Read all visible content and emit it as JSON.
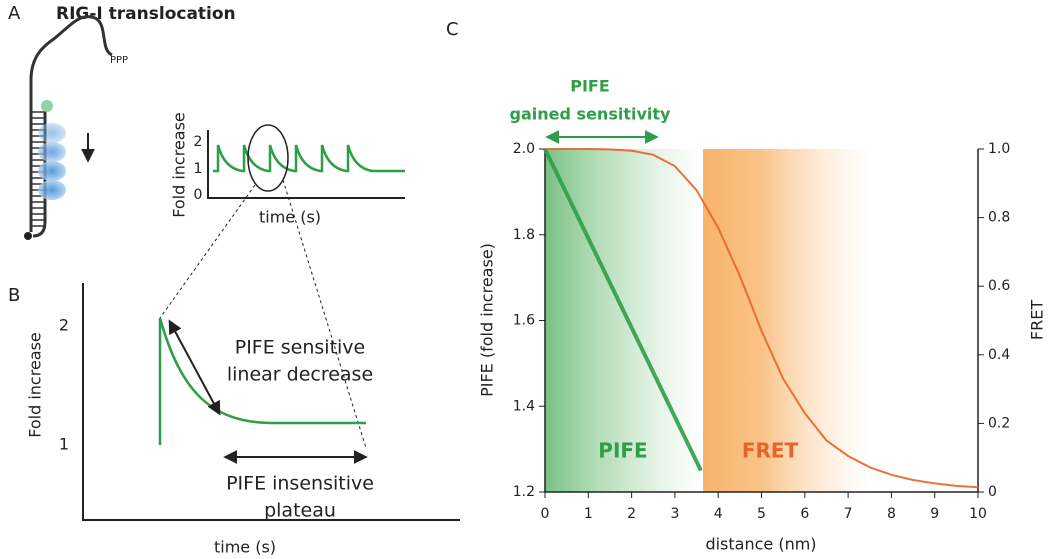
{
  "panel_a": {
    "label": "A",
    "title": "RIG-I translocation",
    "rna_label": "PPP",
    "inset": {
      "y_label": "Fold increase",
      "x_label": "time (s)",
      "yticks": [
        0,
        1,
        2
      ]
    }
  },
  "panel_b": {
    "label": "B",
    "y_label": "Fold increase",
    "x_label": "time (s)",
    "yticks": [
      1,
      2
    ],
    "annotations": [
      "PIFE sensitive",
      "linear decrease",
      "PIFE insensitive",
      "plateau"
    ]
  },
  "chart_data": {
    "type": "line",
    "panel_label": "C",
    "xlabel": "distance (nm)",
    "ylabel": "PIFE (fold increase)",
    "y2label": "FRET",
    "annotations": [
      "PIFE",
      "gained sensitivity"
    ],
    "xlim": [
      0,
      10
    ],
    "xticks": [
      0,
      1,
      2,
      3,
      4,
      5,
      6,
      7,
      8,
      9,
      10
    ],
    "ylim": [
      1.2,
      2.0
    ],
    "yticks": [
      1.2,
      1.4,
      1.6,
      1.8,
      {
        "value": 2.0,
        "label": "2.0"
      }
    ],
    "y2lim": [
      0,
      1
    ],
    "y2ticks": [
      0,
      0.2,
      0.4,
      0.6,
      0.8,
      {
        "value": 1.0,
        "label": "1.0"
      }
    ],
    "series": [
      {
        "name": "PIFE",
        "color": "#2e9e48",
        "x": [
          0,
          3.6
        ],
        "values": [
          2.0,
          1.25
        ]
      },
      {
        "name": "FRET",
        "color": "#e8632a",
        "axis": "y2",
        "x": [
          0,
          0.5,
          1,
          1.5,
          2,
          2.5,
          3,
          3.5,
          4,
          4.5,
          5,
          5.5,
          6,
          6.5,
          7,
          7.5,
          8,
          8.5,
          9,
          9.5,
          10
        ],
        "values": [
          1.0,
          1.0,
          1.0,
          0.999,
          0.995,
          0.983,
          0.95,
          0.88,
          0.77,
          0.63,
          0.47,
          0.33,
          0.23,
          0.15,
          0.105,
          0.072,
          0.05,
          0.035,
          0.025,
          0.018,
          0.014
        ]
      }
    ]
  }
}
